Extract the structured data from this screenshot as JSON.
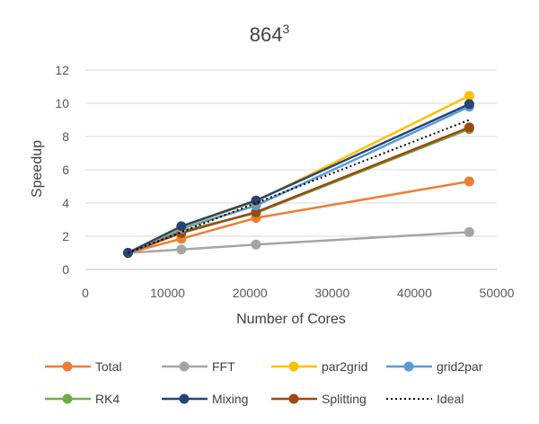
{
  "chart_data": {
    "type": "line",
    "title": "864",
    "title_superscript": "3",
    "xlabel": "Number of Cores",
    "ylabel": "Speedup",
    "xlim": [
      0,
      50000
    ],
    "ylim": [
      0,
      12
    ],
    "xticks": [
      0,
      10000,
      20000,
      30000,
      40000,
      50000
    ],
    "yticks": [
      0,
      2,
      4,
      6,
      8,
      10,
      12
    ],
    "grid": "horizontal",
    "legend_position": "bottom",
    "x": [
      5184,
      11664,
      20736,
      46656
    ],
    "series": [
      {
        "name": "Total",
        "color": "#ED7D31",
        "marker": true,
        "dashed": false,
        "values": [
          1,
          1.85,
          3.1,
          5.3
        ]
      },
      {
        "name": "FFT",
        "color": "#A5A5A5",
        "marker": true,
        "dashed": false,
        "values": [
          1,
          1.2,
          1.5,
          2.25
        ]
      },
      {
        "name": "par2grid",
        "color": "#FFC000",
        "marker": true,
        "dashed": false,
        "values": [
          1,
          2.55,
          4.1,
          10.45
        ]
      },
      {
        "name": "grid2par",
        "color": "#5B9BD5",
        "marker": true,
        "dashed": false,
        "values": [
          1,
          2.45,
          3.85,
          9.8
        ]
      },
      {
        "name": "RK4",
        "color": "#70AD47",
        "marker": true,
        "dashed": false,
        "values": [
          1,
          2.3,
          3.4,
          8.45
        ]
      },
      {
        "name": "Mixing",
        "color": "#264478",
        "marker": true,
        "dashed": false,
        "values": [
          1,
          2.6,
          4.15,
          9.95
        ]
      },
      {
        "name": "Splitting",
        "color": "#9E480E",
        "marker": true,
        "dashed": false,
        "values": [
          1,
          2.2,
          3.45,
          8.55
        ]
      },
      {
        "name": "Ideal",
        "color": "#000000",
        "marker": false,
        "dashed": true,
        "values": [
          1,
          2.25,
          4,
          9
        ]
      }
    ]
  }
}
